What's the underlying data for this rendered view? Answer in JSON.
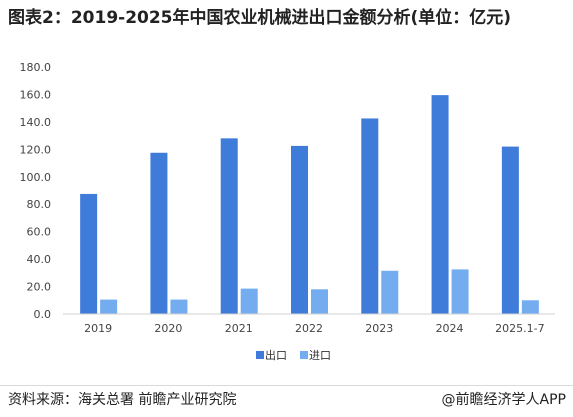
{
  "chart_data": {
    "type": "bar",
    "title": "图表2：2019-2025年中国农业机械进出口金额分析(单位：亿元)",
    "categories": [
      "2019",
      "2020",
      "2021",
      "2022",
      "2023",
      "2024",
      "2025.1-7"
    ],
    "series": [
      {
        "name": "出口",
        "color": "#3f7bd9",
        "values": [
          87.5,
          117.5,
          128.0,
          122.5,
          142.5,
          159.5,
          122.0
        ]
      },
      {
        "name": "进口",
        "color": "#74acf0",
        "values": [
          10.5,
          10.5,
          18.5,
          18.0,
          31.5,
          32.5,
          10.0
        ]
      }
    ],
    "yticks": [
      "0.0",
      "20.0",
      "40.0",
      "60.0",
      "80.0",
      "100.0",
      "120.0",
      "140.0",
      "160.0",
      "180.0"
    ],
    "ylim": [
      0,
      180
    ],
    "xlabel": "",
    "ylabel": "",
    "grid": false,
    "legend_position": "bottom"
  },
  "footer": {
    "source": "资料来源：海关总署 前瞻产业研究院",
    "brand": "@前瞻经济学人APP"
  }
}
